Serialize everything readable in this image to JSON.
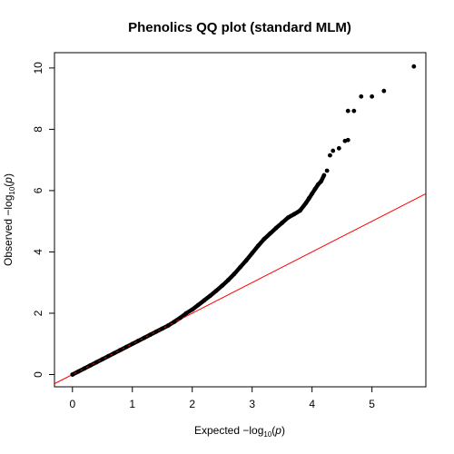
{
  "chart_data": {
    "type": "scatter",
    "title": "Phenolics QQ plot (standard MLM)",
    "xlabel": {
      "prefix": "Expected  −log",
      "sub": "10",
      "open": "(",
      "var": "p",
      "close": ")"
    },
    "ylabel": {
      "prefix": "Observed  −log",
      "sub": "10",
      "open": "(",
      "var": "p",
      "close": ")"
    },
    "xlim": [
      -0.3,
      5.9
    ],
    "ylim": [
      -0.4,
      10.5
    ],
    "x_ticks": [
      0,
      1,
      2,
      3,
      4,
      5
    ],
    "y_ticks": [
      0,
      2,
      4,
      6,
      8,
      10
    ],
    "x_tick_labels": [
      "0",
      "1",
      "2",
      "3",
      "4",
      "5"
    ],
    "y_tick_labels": [
      "0",
      "2",
      "4",
      "6",
      "8",
      "10"
    ],
    "reference_line": {
      "slope": 1,
      "intercept": 0,
      "color": "#ff0000"
    },
    "point_color": "#000000",
    "points": {
      "x": [
        0.0,
        0.1,
        0.2,
        0.3,
        0.4,
        0.5,
        0.6,
        0.7,
        0.8,
        0.9,
        1.0,
        1.1,
        1.2,
        1.3,
        1.4,
        1.5,
        1.6,
        1.7,
        1.8,
        1.9,
        2.0,
        2.1,
        2.2,
        2.3,
        2.4,
        2.5,
        2.6,
        2.7,
        2.8,
        2.9,
        3.0,
        3.1,
        3.2,
        3.3,
        3.4,
        3.5,
        3.6,
        3.7,
        3.8,
        3.9,
        3.95,
        4.0,
        4.05,
        4.1,
        4.15,
        4.2,
        4.25,
        4.3,
        4.35,
        4.45,
        4.55,
        4.6,
        4.6,
        4.7,
        4.82,
        5.0,
        5.2,
        5.7
      ],
      "y": [
        0.0,
        0.1,
        0.2,
        0.3,
        0.4,
        0.5,
        0.6,
        0.7,
        0.8,
        0.9,
        1.0,
        1.1,
        1.2,
        1.3,
        1.4,
        1.5,
        1.6,
        1.72,
        1.85,
        2.0,
        2.12,
        2.27,
        2.42,
        2.57,
        2.73,
        2.9,
        3.08,
        3.28,
        3.5,
        3.72,
        3.96,
        4.2,
        4.42,
        4.6,
        4.78,
        4.95,
        5.12,
        5.23,
        5.35,
        5.6,
        5.75,
        5.9,
        6.05,
        6.2,
        6.3,
        6.5,
        6.65,
        7.15,
        7.3,
        7.38,
        7.62,
        7.65,
        8.6,
        8.6,
        9.07,
        9.07,
        9.25,
        10.05
      ]
    }
  }
}
